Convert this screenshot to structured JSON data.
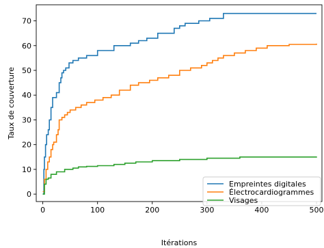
{
  "chart_data": {
    "type": "line",
    "title": "",
    "xlabel": "Itérations",
    "ylabel": "Taux de couverture",
    "xlim": [
      -12,
      510
    ],
    "ylim": [
      -3,
      76.5
    ],
    "x_ticks": [
      0,
      100,
      200,
      300,
      400,
      500
    ],
    "x_tick_labels": [
      "0",
      "100",
      "200",
      "300",
      "400",
      "500"
    ],
    "y_ticks": [
      0,
      10,
      20,
      30,
      40,
      50,
      60,
      70
    ],
    "y_tick_labels": [
      "0",
      "10",
      "20",
      "30",
      "40",
      "50",
      "60",
      "70"
    ],
    "grid": false,
    "legend_position": "lower-right",
    "series": [
      {
        "name": "Empreintes digitales",
        "color": "#1f77b4",
        "step": true,
        "x": [
          0,
          2,
          3,
          5,
          7,
          10,
          12,
          15,
          18,
          20,
          25,
          30,
          33,
          35,
          38,
          42,
          48,
          55,
          65,
          80,
          90,
          100,
          130,
          160,
          175,
          190,
          210,
          240,
          250,
          260,
          285,
          305,
          330,
          360,
          400,
          500
        ],
        "y": [
          0,
          10,
          15,
          20,
          24,
          26,
          30,
          35,
          39,
          39,
          41,
          45,
          47,
          49,
          50,
          51,
          53,
          54,
          55,
          56,
          56,
          58,
          60,
          61,
          62,
          63,
          65,
          67,
          68,
          69,
          70,
          71,
          73,
          73,
          73,
          73
        ]
      },
      {
        "name": "Électrocardiogrammes",
        "color": "#ff7f0e",
        "step": true,
        "x": [
          0,
          3,
          6,
          9,
          12,
          15,
          18,
          20,
          25,
          28,
          30,
          35,
          40,
          45,
          50,
          60,
          70,
          80,
          95,
          110,
          125,
          140,
          160,
          175,
          195,
          210,
          230,
          250,
          270,
          290,
          300,
          310,
          320,
          330,
          350,
          370,
          390,
          410,
          450,
          500
        ],
        "y": [
          1,
          6,
          10,
          13,
          15,
          18,
          20,
          21,
          24,
          26,
          30,
          31,
          32,
          33,
          34,
          35,
          36,
          37,
          38,
          39,
          40,
          42,
          44,
          45,
          46,
          47,
          48,
          50,
          51,
          52,
          53,
          54,
          55,
          56,
          57,
          58,
          59,
          60,
          60.5,
          60.8
        ]
      },
      {
        "name": "Visages",
        "color": "#2ca02c",
        "step": true,
        "x": [
          0,
          3,
          6,
          10,
          15,
          25,
          40,
          55,
          65,
          80,
          100,
          130,
          150,
          170,
          200,
          250,
          300,
          360,
          500
        ],
        "y": [
          0,
          4,
          6,
          6.5,
          8,
          9,
          10,
          10.5,
          11,
          11.2,
          11.5,
          12,
          12.5,
          13,
          13.5,
          14,
          14.5,
          15,
          15.2
        ]
      }
    ]
  }
}
